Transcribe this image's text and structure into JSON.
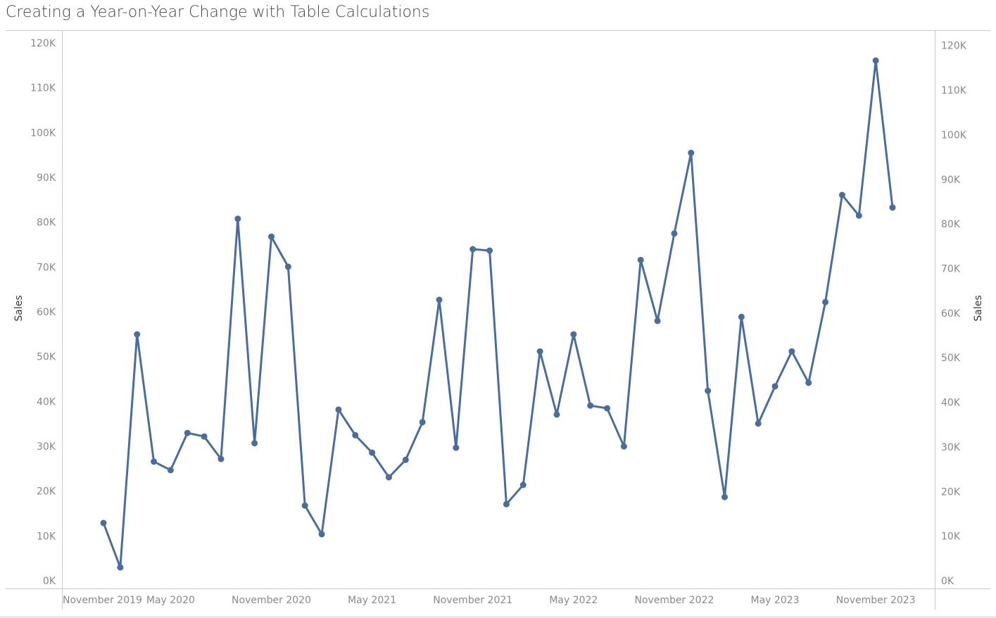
{
  "chart_data": {
    "type": "line",
    "title": "Creating a Year-on-Year Change with Table Calculations",
    "y_label": "Sales",
    "y2_label": "Sales",
    "x": [
      "2020-01",
      "2020-02",
      "2020-03",
      "2020-04",
      "2020-05",
      "2020-06",
      "2020-07",
      "2020-08",
      "2020-09",
      "2020-10",
      "2020-11",
      "2020-12",
      "2021-01",
      "2021-02",
      "2021-03",
      "2021-04",
      "2021-05",
      "2021-06",
      "2021-07",
      "2021-08",
      "2021-09",
      "2021-10",
      "2021-11",
      "2021-12",
      "2022-01",
      "2022-02",
      "2022-03",
      "2022-04",
      "2022-05",
      "2022-06",
      "2022-07",
      "2022-08",
      "2022-09",
      "2022-10",
      "2022-11",
      "2022-12",
      "2023-01",
      "2023-02",
      "2023-03",
      "2023-04",
      "2023-05",
      "2023-06",
      "2023-07",
      "2023-08",
      "2023-09",
      "2023-10",
      "2023-11",
      "2023-12"
    ],
    "series": [
      {
        "name": "Sales",
        "color": "#4a6d9c",
        "values": [
          14600,
          4700,
          56700,
          28300,
          26400,
          34700,
          33900,
          28900,
          82500,
          32400,
          78500,
          71800,
          18500,
          12100,
          39900,
          34200,
          30300,
          24800,
          28700,
          37100,
          64400,
          31400,
          75700,
          75400,
          18800,
          23100,
          52900,
          38800,
          56700,
          40800,
          40200,
          31700,
          73300,
          59700,
          79200,
          97200,
          44100,
          20400,
          60600,
          36800,
          45100,
          52900,
          45900,
          63900,
          87800,
          83200,
          117800,
          85000
        ]
      }
    ],
    "xticks": [
      {
        "value": "2019-11",
        "label": "November 2019"
      },
      {
        "value": "2020-05",
        "label": "May 2020"
      },
      {
        "value": "2020-11",
        "label": "November 2020"
      },
      {
        "value": "2021-05",
        "label": "May 2021"
      },
      {
        "value": "2021-11",
        "label": "November 2021"
      },
      {
        "value": "2022-05",
        "label": "May 2022"
      },
      {
        "value": "2022-11",
        "label": "November 2022"
      },
      {
        "value": "2023-05",
        "label": "May 2023"
      },
      {
        "value": "2023-11",
        "label": "November 2023"
      }
    ],
    "ylim": [
      0,
      124400
    ],
    "yticks": [
      {
        "value": 0,
        "label": "0K"
      },
      {
        "value": 10000,
        "label": "10K"
      },
      {
        "value": 20000,
        "label": "20K"
      },
      {
        "value": 30000,
        "label": "30K"
      },
      {
        "value": 40000,
        "label": "40K"
      },
      {
        "value": 50000,
        "label": "50K"
      },
      {
        "value": 60000,
        "label": "60K"
      },
      {
        "value": 70000,
        "label": "70K"
      },
      {
        "value": 80000,
        "label": "80K"
      },
      {
        "value": 90000,
        "label": "90K"
      },
      {
        "value": 100000,
        "label": "100K"
      },
      {
        "value": 110000,
        "label": "110K"
      },
      {
        "value": 120000,
        "label": "120K"
      }
    ],
    "y2lim": [
      0,
      125000
    ],
    "y2ticks": [
      {
        "value": 0,
        "label": "0K"
      },
      {
        "value": 10000,
        "label": "10K"
      },
      {
        "value": 20000,
        "label": "20K"
      },
      {
        "value": 30000,
        "label": "30K"
      },
      {
        "value": 40000,
        "label": "40K"
      },
      {
        "value": 50000,
        "label": "50K"
      },
      {
        "value": 60000,
        "label": "60K"
      },
      {
        "value": 70000,
        "label": "70K"
      },
      {
        "value": 80000,
        "label": "80K"
      },
      {
        "value": 90000,
        "label": "90K"
      },
      {
        "value": 100000,
        "label": "100K"
      },
      {
        "value": 110000,
        "label": "110K"
      },
      {
        "value": 120000,
        "label": "120K"
      }
    ],
    "grid": false,
    "markers": true
  }
}
